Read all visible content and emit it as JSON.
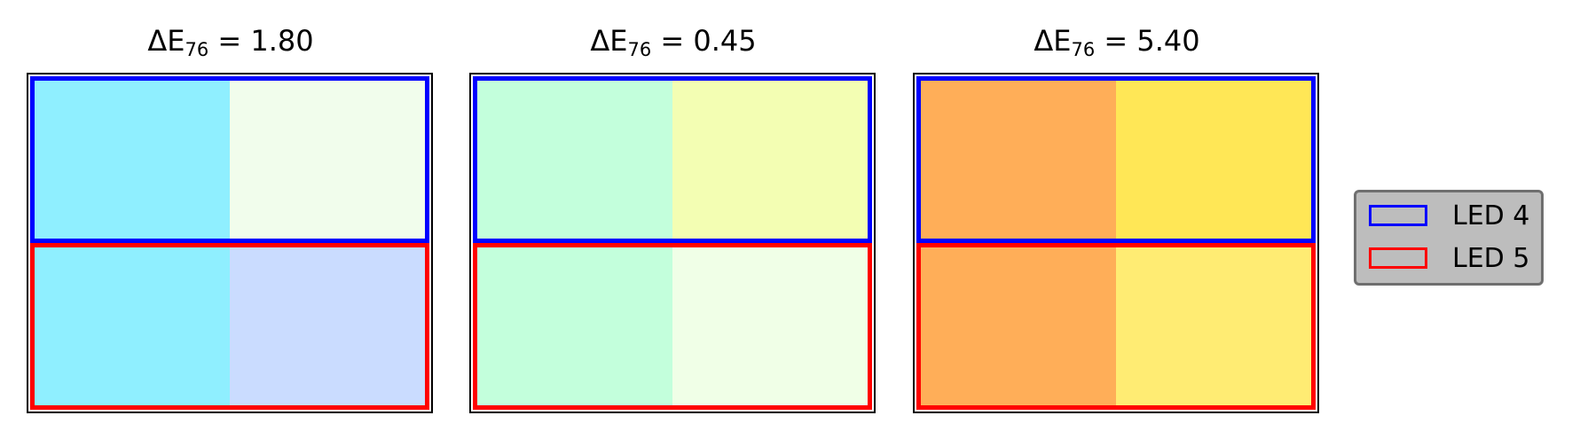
{
  "figure": {
    "panels": [
      {
        "title_prefix": "ΔE",
        "title_subscript": "76",
        "title_value": " = 1.80",
        "rows": [
          {
            "series": "LED 4",
            "colors": [
              "#8fefff",
              "#f1fdec"
            ]
          },
          {
            "series": "LED 5",
            "colors": [
              "#8fefff",
              "#cadcff"
            ]
          }
        ]
      },
      {
        "title_prefix": "ΔE",
        "title_subscript": "76",
        "title_value": " = 0.45",
        "rows": [
          {
            "series": "LED 4",
            "colors": [
              "#c3ffdc",
              "#f3feb3"
            ]
          },
          {
            "series": "LED 5",
            "colors": [
              "#c3ffdc",
              "#f0ffe7"
            ]
          }
        ]
      },
      {
        "title_prefix": "ΔE",
        "title_subscript": "76",
        "title_value": " = 5.40",
        "rows": [
          {
            "series": "LED 4",
            "colors": [
              "#ffae58",
              "#ffe756"
            ]
          },
          {
            "series": "LED 5",
            "colors": [
              "#ffae58",
              "#ffec73"
            ]
          }
        ]
      }
    ],
    "legend": [
      {
        "label": "LED 4",
        "color": "#0000ff"
      },
      {
        "label": "LED 5",
        "color": "#ff0000"
      }
    ]
  },
  "chart_data": [
    {
      "type": "heatmap",
      "title": "ΔE76 = 1.80",
      "rows": [
        "LED 4",
        "LED 5"
      ],
      "colors": [
        [
          "#8fefff",
          "#f1fdec"
        ],
        [
          "#8fefff",
          "#cadcff"
        ]
      ]
    },
    {
      "type": "heatmap",
      "title": "ΔE76 = 0.45",
      "rows": [
        "LED 4",
        "LED 5"
      ],
      "colors": [
        [
          "#c3ffdc",
          "#f3feb3"
        ],
        [
          "#c3ffdc",
          "#f0ffe7"
        ]
      ]
    },
    {
      "type": "heatmap",
      "title": "ΔE76 = 5.40",
      "rows": [
        "LED 4",
        "LED 5"
      ],
      "colors": [
        [
          "#ffae58",
          "#ffe756"
        ],
        [
          "#ffae58",
          "#ffec73"
        ]
      ]
    }
  ]
}
